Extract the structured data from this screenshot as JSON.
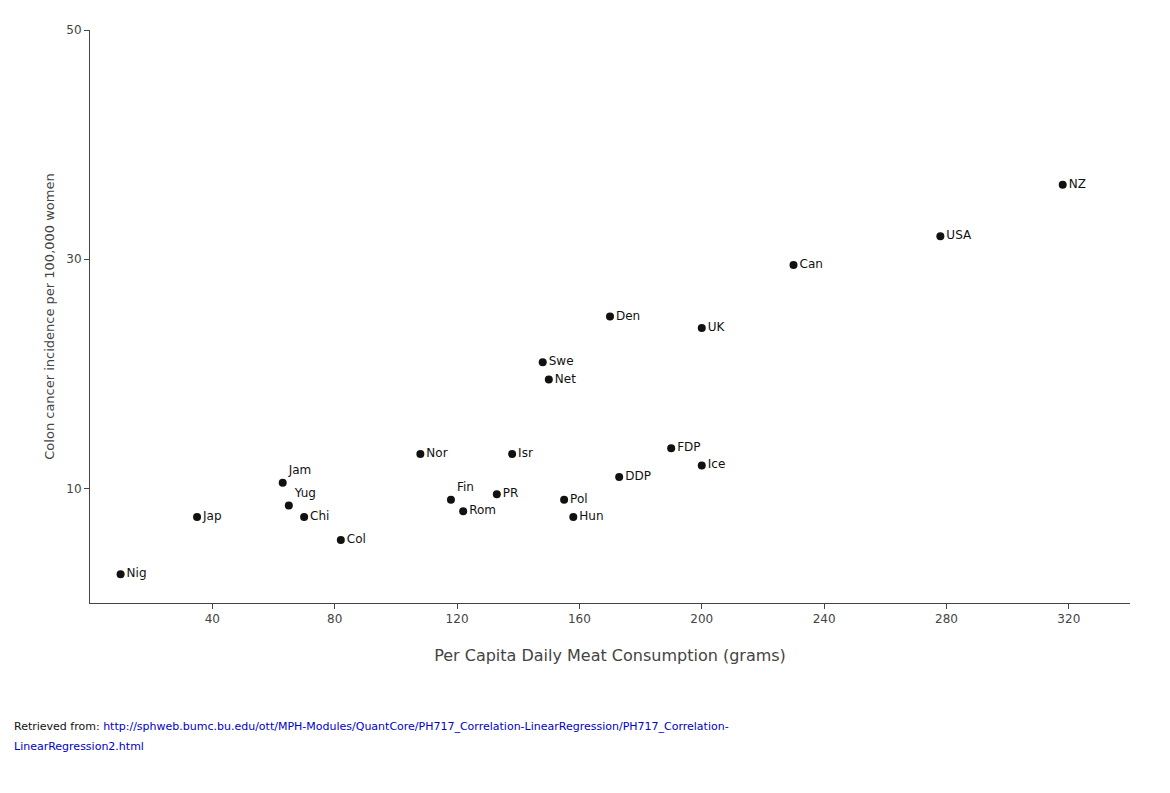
{
  "chart_data": {
    "type": "scatter",
    "xlabel": "Per Capita Daily Meat Consumption (grams)",
    "ylabel": "Colon cancer incidence per 100,000 women",
    "labels": [
      "Nig",
      "Jap",
      "Yug",
      "Chi",
      "Col",
      "Jam",
      "Nor",
      "Fin",
      "Rom",
      "PR",
      "Isr",
      "Swe",
      "Net",
      "Hun",
      "Pol",
      "Den",
      "DDP",
      "FDP",
      "Ice",
      "UK",
      "Can",
      "USA",
      "NZ"
    ],
    "x": [
      10,
      35,
      65,
      70,
      82,
      63,
      108,
      118,
      122,
      133,
      138,
      148,
      150,
      158,
      155,
      170,
      173,
      190,
      200,
      200,
      230,
      278,
      318
    ],
    "values": [
      2.5,
      7.5,
      8.5,
      7.5,
      5.5,
      10.5,
      13.0,
      9.0,
      8.0,
      9.5,
      13.0,
      21.0,
      19.5,
      7.5,
      9.0,
      25.0,
      11.0,
      13.5,
      12.0,
      24.0,
      29.5,
      32.0,
      36.5
    ],
    "color": "#111111",
    "xlim": [
      0,
      340
    ],
    "ylim": [
      0,
      50
    ],
    "xticks": [
      40,
      80,
      120,
      160,
      200,
      240,
      280,
      320
    ],
    "yticks": [
      10,
      30,
      50
    ],
    "grid": false,
    "annotations": [
      {
        "text": "Retrieved from: ",
        "color": "#111111"
      },
      {
        "text": "http://sphweb.bumc.bu.edu/ott/MPH-Modules/QuantCore/PH717_Correlation-LinearRegression/PH717_Correlation-",
        "color": "#0000cc"
      },
      {
        "text": "LinearRegression2.html",
        "color": "#0000cc"
      }
    ]
  }
}
